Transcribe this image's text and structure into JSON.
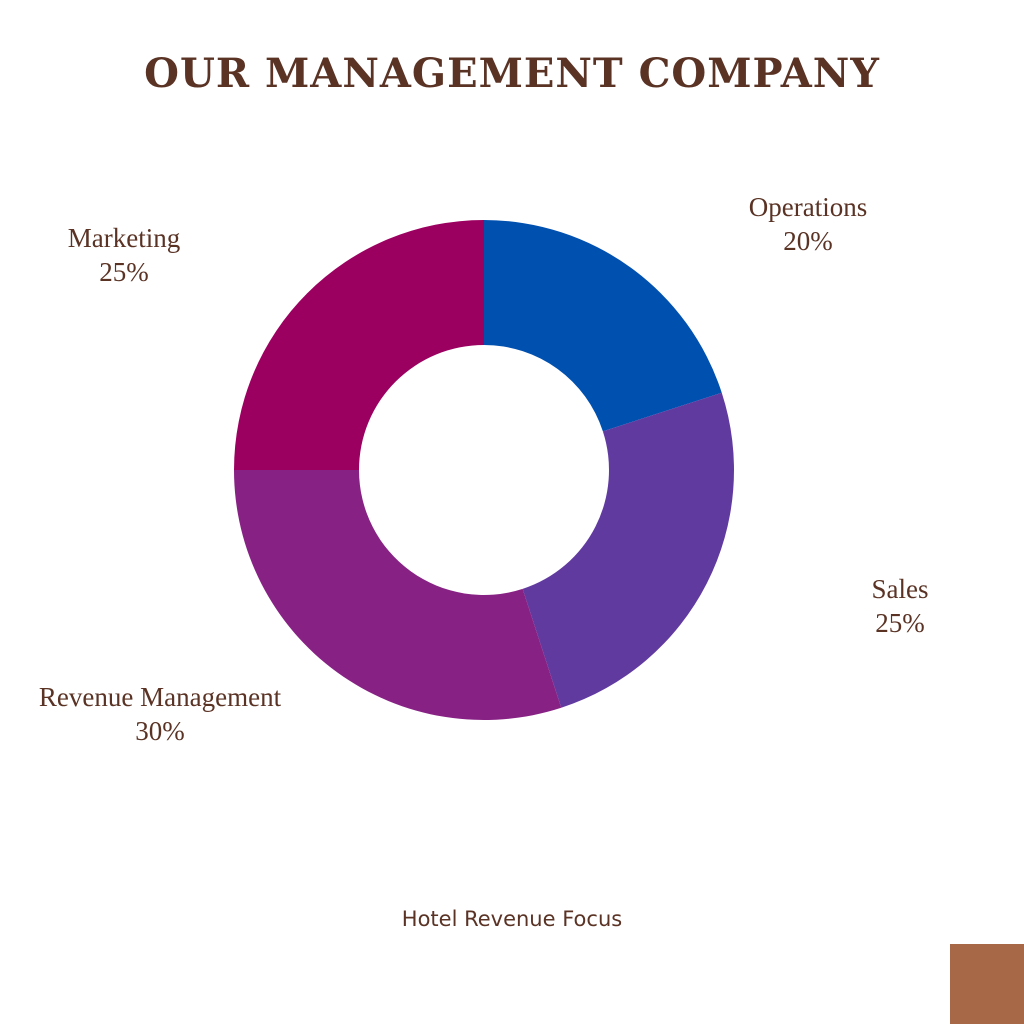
{
  "title": "OUR MANAGEMENT COMPANY",
  "footer": "Hotel Revenue Focus",
  "colors": {
    "text": "#5a3325",
    "corner_block": "#a76848",
    "background": "#ffffff"
  },
  "chart_data": {
    "type": "pie",
    "subtype": "donut",
    "title": "OUR MANAGEMENT COMPANY",
    "slices": [
      {
        "label": "Operations",
        "value": 20,
        "value_label": "20%",
        "color": "#0050b0"
      },
      {
        "label": "Sales",
        "value": 25,
        "value_label": "25%",
        "color": "#613aa0"
      },
      {
        "label": "Revenue Management",
        "value": 30,
        "value_label": "30%",
        "color": "#872284"
      },
      {
        "label": "Marketing",
        "value": 25,
        "value_label": "25%",
        "color": "#9b0060"
      }
    ]
  }
}
